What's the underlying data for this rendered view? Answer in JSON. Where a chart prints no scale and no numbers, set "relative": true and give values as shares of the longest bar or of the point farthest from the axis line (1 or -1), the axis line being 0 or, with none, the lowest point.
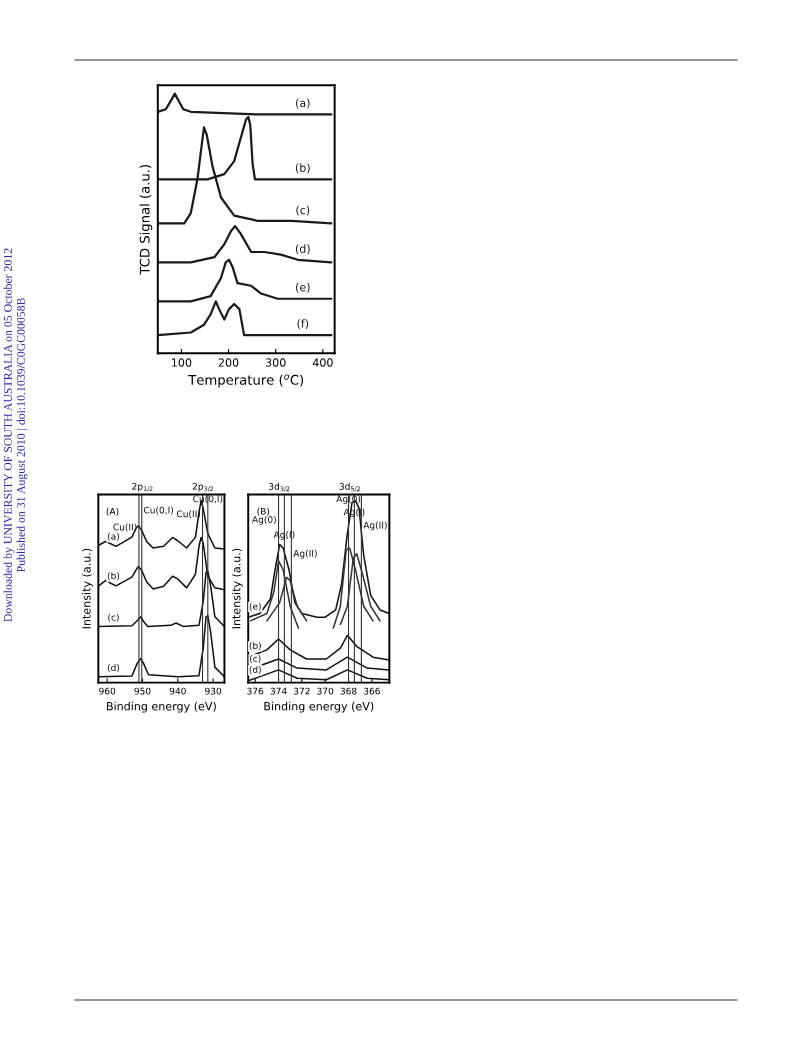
{
  "chart_data": [
    {
      "type": "line",
      "relative": true,
      "xlabel": "Temperature ($^{o}$C)",
      "ylabel": "TCD Signal (a.u.)",
      "xlim": [
        50,
        425
      ],
      "xticks": [
        100,
        200,
        300,
        400
      ],
      "annotations": [
        "Downloaded by UNIVERSITY OF SOUTH AUSTRALIA on 05 October 2012",
        "Published on 31 August 2010 | doi:10.1039/C0GC00058B"
      ],
      "series": [
        {
          "name": "(a)",
          "color": "#1a1a1a",
          "x": [
            50,
            67,
            77,
            86,
            95,
            104,
            120,
            262,
            418
          ],
          "values": [
            0.93,
            0.94,
            0.97,
            1.0,
            0.97,
            0.94,
            0.93,
            0.92,
            0.92
          ]
        },
        {
          "name": "(b)",
          "color": "#1a1a1a",
          "x": [
            50,
            155,
            191,
            212,
            226,
            237,
            242,
            246,
            251,
            256,
            418
          ],
          "values": [
            0.67,
            0.67,
            0.69,
            0.74,
            0.83,
            0.9,
            0.91,
            0.88,
            0.73,
            0.67,
            0.67
          ]
        },
        {
          "name": "(c)",
          "color": "#1a1a1a",
          "x": [
            50,
            106,
            120,
            134,
            145,
            148,
            154,
            166,
            184,
            212,
            262,
            333,
            418
          ],
          "values": [
            0.5,
            0.5,
            0.54,
            0.67,
            0.83,
            0.87,
            0.84,
            0.72,
            0.6,
            0.53,
            0.51,
            0.51,
            0.5
          ]
        },
        {
          "name": "(d)",
          "color": "#1a1a1a",
          "x": [
            50,
            120,
            170,
            191,
            205,
            214,
            226,
            248,
            276,
            311,
            347,
            418
          ],
          "values": [
            0.35,
            0.35,
            0.37,
            0.42,
            0.47,
            0.49,
            0.46,
            0.39,
            0.39,
            0.38,
            0.36,
            0.35
          ]
        },
        {
          "name": "(e)",
          "color": "#1a1a1a",
          "x": [
            50,
            120,
            162,
            184,
            194,
            201,
            209,
            219,
            248,
            269,
            304,
            418
          ],
          "values": [
            0.2,
            0.2,
            0.22,
            0.29,
            0.35,
            0.36,
            0.33,
            0.27,
            0.26,
            0.23,
            0.21,
            0.21
          ]
        },
        {
          "name": "(f)",
          "color": "#1a1a1a",
          "x": [
            50,
            120,
            148,
            162,
            173,
            180,
            191,
            201,
            212,
            223,
            233,
            418
          ],
          "values": [
            0.07,
            0.08,
            0.11,
            0.15,
            0.2,
            0.17,
            0.13,
            0.17,
            0.19,
            0.17,
            0.07,
            0.07
          ]
        }
      ]
    },
    {
      "type": "line",
      "relative": true,
      "xlabel": "Binding energy (eV)",
      "ylabel": "Intensity (a.u.)",
      "xlim": [
        962.5,
        926.8
      ],
      "xticks": [
        960,
        950,
        940,
        930
      ],
      "annotations": [
        "(A)",
        "2p$_{1/2}$",
        "2p$_{3/2}$"
      ],
      "ref_lines": [
        {
          "axis": "x",
          "value": 951.0,
          "label": "Cu(II)",
          "color": "#333333"
        },
        {
          "axis": "x",
          "value": 950.2,
          "label": "Cu(0,I)",
          "color": "#333333"
        },
        {
          "axis": "x",
          "value": 933.0,
          "label": "Cu(II)",
          "color": "#333333"
        },
        {
          "axis": "x",
          "value": 931.5,
          "label": "Cu(0,I)",
          "color": "#333333"
        }
      ],
      "series": [
        {
          "name": "(a)",
          "color": "#111111",
          "x": [
            962.4,
            960.3,
            959.3,
            957.5,
            953,
            951.8,
            951.2,
            950.3,
            948.8,
            947,
            944,
            941.5,
            940,
            937.5,
            935,
            934,
            933.4,
            932.8,
            931.5,
            929.5,
            926.8
          ],
          "values": [
            0.755,
            0.777,
            0.766,
            0.749,
            0.8,
            0.85,
            0.862,
            0.84,
            0.775,
            0.74,
            0.75,
            0.798,
            0.78,
            0.74,
            0.8,
            0.936,
            1.0,
            0.957,
            0.819,
            0.74,
            0.734
          ]
        },
        {
          "name": "(b)",
          "color": "#111111",
          "x": [
            962.4,
            960.3,
            959.3,
            957.5,
            953,
            951.8,
            951.2,
            950.3,
            948.8,
            947,
            944,
            941.5,
            940,
            937.5,
            935,
            934,
            933.4,
            932.8,
            931.5,
            929.5,
            926.8
          ],
          "values": [
            0.532,
            0.564,
            0.549,
            0.532,
            0.58,
            0.62,
            0.638,
            0.62,
            0.553,
            0.515,
            0.53,
            0.585,
            0.57,
            0.521,
            0.596,
            0.75,
            0.798,
            0.766,
            0.585,
            0.521,
            0.511
          ]
        },
        {
          "name": "(c)",
          "color": "#111111",
          "x": [
            962.4,
            953,
            951.5,
            950.5,
            949.7,
            948.5,
            942,
            940.5,
            938.5,
            934,
            932.8,
            932,
            931.5,
            930.7,
            929.5,
            926.8
          ],
          "values": [
            0.309,
            0.313,
            0.34,
            0.362,
            0.336,
            0.309,
            0.315,
            0.328,
            0.309,
            0.315,
            0.447,
            0.606,
            0.613,
            0.532,
            0.362,
            0.309
          ]
        },
        {
          "name": "(d)",
          "color": "#111111",
          "x": [
            962.4,
            953,
            951.5,
            950.5,
            949.7,
            948.3,
            940,
            934,
            932.8,
            932,
            931.5,
            930.7,
            929.5,
            926.8
          ],
          "values": [
            0.032,
            0.036,
            0.106,
            0.132,
            0.106,
            0.043,
            0.032,
            0.038,
            0.191,
            0.362,
            0.368,
            0.277,
            0.085,
            0.032
          ]
        }
      ]
    },
    {
      "type": "line",
      "relative": true,
      "xlabel": "Binding energy (eV)",
      "ylabel": "Intensity (a.u.)",
      "xlim": [
        376.6,
        364.5
      ],
      "xticks": [
        376,
        374,
        372,
        370,
        368,
        366
      ],
      "annotations": [
        "(B)",
        "3d$_{3/2}$",
        "3d$_{5/2}$"
      ],
      "ref_lines": [
        {
          "axis": "x",
          "value": 374.0,
          "label": "Ag(0)",
          "color": "#333333"
        },
        {
          "axis": "x",
          "value": 373.5,
          "label": "Ag(I)",
          "color": "#333333"
        },
        {
          "axis": "x",
          "value": 372.9,
          "label": "Ag(II)",
          "color": "#333333"
        },
        {
          "axis": "x",
          "value": 368.0,
          "label": "Ag(0)",
          "color": "#333333"
        },
        {
          "axis": "x",
          "value": 367.5,
          "label": "Ag(I)",
          "color": "#333333"
        },
        {
          "axis": "x",
          "value": 366.9,
          "label": "Ag(II)",
          "color": "#333333"
        }
      ],
      "series": [
        {
          "name": "(e)",
          "color": "#111111",
          "x": [
            376.6,
            375.6,
            374.7,
            374.3,
            373.9,
            373.6,
            373.1,
            372.6,
            372,
            370.7,
            370,
            369.1,
            368.6,
            368.1,
            367.7,
            367.4,
            367.1,
            366.7,
            366.1,
            365.3,
            364.5
          ],
          "values": [
            0.36,
            0.38,
            0.46,
            0.62,
            0.76,
            0.74,
            0.62,
            0.44,
            0.38,
            0.36,
            0.36,
            0.4,
            0.54,
            0.82,
            0.99,
            1.0,
            0.96,
            0.7,
            0.48,
            0.4,
            0.38
          ]
        },
        {
          "color": "#333333",
          "x": [
            376.4,
            375,
            374.4,
            374,
            373.6,
            373,
            372.3,
            370.8,
            369.3,
            368.7,
            368.2,
            367.9,
            367.4,
            366.7,
            365.9
          ],
          "values": [
            0.34,
            0.38,
            0.5,
            0.67,
            0.62,
            0.42,
            0.3,
            null,
            0.3,
            0.42,
            0.73,
            0.74,
            0.62,
            0.42,
            0.34
          ]
        },
        {
          "color": "#333333",
          "x": [
            375,
            373.9,
            373.4,
            373.3,
            373,
            372.4,
            371.6,
            370.2,
            368.7,
            368.1,
            367.6,
            367.3,
            366.9,
            366.1,
            365.3
          ],
          "values": [
            0.34,
            0.44,
            0.56,
            0.58,
            0.56,
            0.42,
            0.34,
            null,
            0.32,
            0.42,
            0.68,
            0.71,
            0.62,
            0.42,
            0.34
          ]
        },
        {
          "name": "(b)",
          "color": "#111111",
          "x": [
            376.6,
            375,
            374,
            373,
            371.6,
            369.9,
            368.7,
            368.1,
            367.3,
            365.9,
            364.5
          ],
          "values": [
            0.14,
            0.18,
            0.24,
            0.18,
            0.13,
            0.13,
            0.19,
            0.26,
            0.2,
            0.14,
            0.124
          ]
        },
        {
          "name": "(c)",
          "color": "#111111",
          "x": [
            376.6,
            374,
            372.4,
            369.9,
            368.1,
            366.4,
            364.5
          ],
          "values": [
            0.07,
            0.13,
            0.08,
            0.07,
            0.14,
            0.08,
            0.07
          ]
        },
        {
          "name": "(d)",
          "color": "#111111",
          "x": [
            376.6,
            374,
            372.4,
            369.9,
            368.1,
            366.4,
            364.5
          ],
          "values": [
            0.01,
            0.07,
            0.024,
            0.016,
            0.07,
            0.024,
            0.016
          ]
        }
      ]
    }
  ]
}
